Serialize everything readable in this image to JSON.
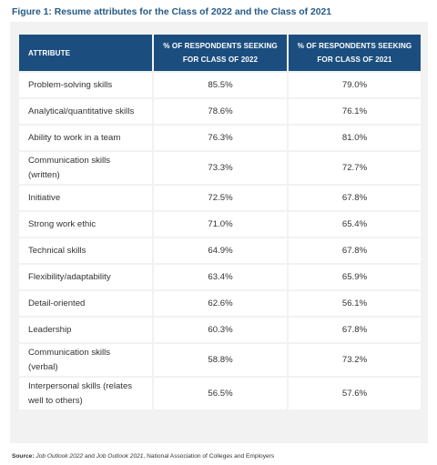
{
  "title": "Figure 1: Resume attributes for the Class of 2022 and the Class of 2021",
  "chart_data": {
    "type": "table",
    "columns": [
      "ATTRIBUTE",
      "% OF RESPONDENTS SEEKING FOR CLASS OF 2022",
      "% OF RESPONDENTS SEEKING FOR CLASS OF 2021"
    ],
    "header_lines": {
      "attribute": "ATTRIBUTE",
      "c2022_line1": "% OF RESPONDENTS SEEKING",
      "c2022_line2": "FOR CLASS OF 2022",
      "c2021_line1": "% OF RESPONDENTS SEEKING",
      "c2021_line2": "FOR CLASS OF 2021"
    },
    "rows": [
      {
        "attribute": [
          "Problem-solving skills"
        ],
        "class_2022": "85.5%",
        "class_2021": "79.0%"
      },
      {
        "attribute": [
          "Analytical/quantitative skills"
        ],
        "class_2022": "78.6%",
        "class_2021": "76.1%"
      },
      {
        "attribute": [
          "Ability to work in a team"
        ],
        "class_2022": "76.3%",
        "class_2021": "81.0%"
      },
      {
        "attribute": [
          "Communication skills",
          "(written)"
        ],
        "class_2022": "73.3%",
        "class_2021": "72.7%"
      },
      {
        "attribute": [
          "Initiative"
        ],
        "class_2022": "72.5%",
        "class_2021": "67.8%"
      },
      {
        "attribute": [
          "Strong work ethic"
        ],
        "class_2022": "71.0%",
        "class_2021": "65.4%"
      },
      {
        "attribute": [
          "Technical skills"
        ],
        "class_2022": "64.9%",
        "class_2021": "67.8%"
      },
      {
        "attribute": [
          "Flexibility/adaptability"
        ],
        "class_2022": "63.4%",
        "class_2021": "65.9%"
      },
      {
        "attribute": [
          "Detail-oriented"
        ],
        "class_2022": "62.6%",
        "class_2021": "56.1%"
      },
      {
        "attribute": [
          "Leadership"
        ],
        "class_2022": "60.3%",
        "class_2021": "67.8%"
      },
      {
        "attribute": [
          "Communication skills",
          "(verbal)"
        ],
        "class_2022": "58.8%",
        "class_2021": "73.2%"
      },
      {
        "attribute": [
          "Interpersonal skills (relates",
          "well to others)"
        ],
        "class_2022": "56.5%",
        "class_2021": "57.6%"
      }
    ]
  },
  "source": {
    "label": "Source:",
    "text_1": "Job Outlook 2022",
    "text_2": " and ",
    "text_3": "Job Outlook 2021",
    "text_4": ", National Association of Colleges and Employers"
  },
  "colors": {
    "title": "#245a86",
    "header_bg": "#1b4e7f",
    "panel_bg": "#f1f2f1"
  }
}
